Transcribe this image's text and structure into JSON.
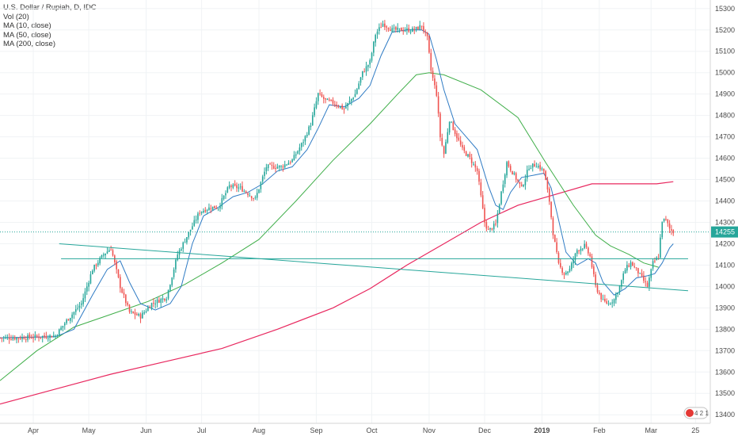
{
  "legend": {
    "symbol": "U.S. Dollar / Rupiah, D, IDC",
    "vol": "Vol (20)",
    "ma10": "MA (10, close)",
    "ma50": "MA (50, close)",
    "ma200": "MA (200, close)"
  },
  "logo_text": "4 2 1",
  "colors": {
    "up": "#26a69a",
    "down": "#ef5350",
    "ma10": "#2f7bc4",
    "ma50": "#3fae49",
    "ma200": "#e8285f",
    "trendline": "#26a69a",
    "price_line": "#26a69a"
  },
  "chart_data": {
    "type": "candlestick",
    "y_ticks": [
      13400,
      13500,
      13600,
      13700,
      13800,
      13900,
      14000,
      14100,
      14200,
      14300,
      14400,
      14500,
      14600,
      14700,
      14800,
      14900,
      15000,
      15100,
      15200,
      15300
    ],
    "ylim": [
      13360,
      15340
    ],
    "x_ticks": [
      {
        "label": "Apr",
        "day": 18
      },
      {
        "label": "May",
        "day": 48
      },
      {
        "label": "Jun",
        "day": 79
      },
      {
        "label": "Jul",
        "day": 109
      },
      {
        "label": "Aug",
        "day": 140
      },
      {
        "label": "Sep",
        "day": 171
      },
      {
        "label": "Oct",
        "day": 201
      },
      {
        "label": "Nov",
        "day": 232
      },
      {
        "label": "Dec",
        "day": 262
      },
      {
        "label": "2019",
        "day": 293
      },
      {
        "label": "Feb",
        "day": 324
      },
      {
        "label": "Mar",
        "day": 352
      },
      {
        "label": "25",
        "day": 376
      }
    ],
    "xlim": [
      0,
      384
    ],
    "last_price": 14255,
    "last_price_label": "14255",
    "key_closes": [
      [
        0,
        13760
      ],
      [
        10,
        13760
      ],
      [
        30,
        13770
      ],
      [
        36,
        13840
      ],
      [
        44,
        13920
      ],
      [
        50,
        14080
      ],
      [
        56,
        14150
      ],
      [
        60,
        14180
      ],
      [
        65,
        14000
      ],
      [
        70,
        13880
      ],
      [
        76,
        13860
      ],
      [
        82,
        13920
      ],
      [
        90,
        13950
      ],
      [
        96,
        14150
      ],
      [
        102,
        14250
      ],
      [
        108,
        14350
      ],
      [
        114,
        14370
      ],
      [
        118,
        14370
      ],
      [
        124,
        14470
      ],
      [
        130,
        14460
      ],
      [
        138,
        14410
      ],
      [
        144,
        14560
      ],
      [
        152,
        14560
      ],
      [
        158,
        14590
      ],
      [
        164,
        14680
      ],
      [
        168,
        14760
      ],
      [
        172,
        14900
      ],
      [
        176,
        14870
      ],
      [
        180,
        14860
      ],
      [
        186,
        14830
      ],
      [
        192,
        14900
      ],
      [
        196,
        15000
      ],
      [
        200,
        15050
      ],
      [
        203,
        15180
      ],
      [
        207,
        15230
      ],
      [
        212,
        15200
      ],
      [
        218,
        15200
      ],
      [
        224,
        15200
      ],
      [
        228,
        15220
      ],
      [
        231,
        15160
      ],
      [
        233,
        15010
      ],
      [
        236,
        14900
      ],
      [
        238,
        14700
      ],
      [
        240,
        14620
      ],
      [
        243,
        14780
      ],
      [
        246,
        14720
      ],
      [
        250,
        14640
      ],
      [
        254,
        14600
      ],
      [
        258,
        14540
      ],
      [
        262,
        14300
      ],
      [
        264,
        14260
      ],
      [
        268,
        14290
      ],
      [
        271,
        14440
      ],
      [
        274,
        14580
      ],
      [
        278,
        14520
      ],
      [
        282,
        14460
      ],
      [
        286,
        14560
      ],
      [
        290,
        14570
      ],
      [
        294,
        14540
      ],
      [
        297,
        14400
      ],
      [
        299,
        14250
      ],
      [
        302,
        14100
      ],
      [
        305,
        14060
      ],
      [
        308,
        14080
      ],
      [
        312,
        14170
      ],
      [
        316,
        14190
      ],
      [
        319,
        14140
      ],
      [
        322,
        14000
      ],
      [
        326,
        13930
      ],
      [
        329,
        13920
      ],
      [
        332,
        13940
      ],
      [
        335,
        14000
      ],
      [
        338,
        14080
      ],
      [
        341,
        14110
      ],
      [
        344,
        14080
      ],
      [
        347,
        14040
      ],
      [
        350,
        14000
      ],
      [
        353,
        14110
      ],
      [
        356,
        14140
      ],
      [
        358,
        14310
      ],
      [
        360,
        14310
      ],
      [
        362,
        14270
      ],
      [
        364,
        14255
      ]
    ],
    "ma10": [
      [
        0,
        13760
      ],
      [
        30,
        13765
      ],
      [
        40,
        13800
      ],
      [
        50,
        13960
      ],
      [
        58,
        14080
      ],
      [
        65,
        14120
      ],
      [
        70,
        14020
      ],
      [
        76,
        13920
      ],
      [
        84,
        13890
      ],
      [
        92,
        13920
      ],
      [
        98,
        14000
      ],
      [
        104,
        14200
      ],
      [
        110,
        14330
      ],
      [
        118,
        14370
      ],
      [
        126,
        14420
      ],
      [
        134,
        14440
      ],
      [
        142,
        14480
      ],
      [
        150,
        14540
      ],
      [
        158,
        14560
      ],
      [
        166,
        14640
      ],
      [
        172,
        14740
      ],
      [
        178,
        14850
      ],
      [
        186,
        14840
      ],
      [
        194,
        14880
      ],
      [
        200,
        14940
      ],
      [
        206,
        15080
      ],
      [
        212,
        15190
      ],
      [
        220,
        15200
      ],
      [
        228,
        15200
      ],
      [
        232,
        15180
      ],
      [
        236,
        15060
      ],
      [
        240,
        14920
      ],
      [
        246,
        14760
      ],
      [
        252,
        14700
      ],
      [
        258,
        14640
      ],
      [
        264,
        14470
      ],
      [
        268,
        14380
      ],
      [
        272,
        14360
      ],
      [
        276,
        14440
      ],
      [
        282,
        14510
      ],
      [
        288,
        14520
      ],
      [
        294,
        14530
      ],
      [
        298,
        14460
      ],
      [
        302,
        14310
      ],
      [
        306,
        14160
      ],
      [
        312,
        14100
      ],
      [
        318,
        14130
      ],
      [
        322,
        14110
      ],
      [
        326,
        14020
      ],
      [
        332,
        13960
      ],
      [
        338,
        13990
      ],
      [
        344,
        14040
      ],
      [
        350,
        14050
      ],
      [
        354,
        14060
      ],
      [
        358,
        14110
      ],
      [
        362,
        14180
      ],
      [
        364,
        14200
      ]
    ],
    "ma50": [
      [
        0,
        13560
      ],
      [
        20,
        13700
      ],
      [
        40,
        13810
      ],
      [
        60,
        13870
      ],
      [
        80,
        13930
      ],
      [
        100,
        14010
      ],
      [
        120,
        14110
      ],
      [
        140,
        14220
      ],
      [
        160,
        14400
      ],
      [
        180,
        14590
      ],
      [
        200,
        14760
      ],
      [
        215,
        14900
      ],
      [
        225,
        14990
      ],
      [
        232,
        15000
      ],
      [
        240,
        14990
      ],
      [
        260,
        14920
      ],
      [
        280,
        14790
      ],
      [
        295,
        14580
      ],
      [
        310,
        14380
      ],
      [
        322,
        14240
      ],
      [
        330,
        14190
      ],
      [
        340,
        14150
      ],
      [
        348,
        14110
      ],
      [
        356,
        14090
      ]
    ],
    "ma200": [
      [
        0,
        13450
      ],
      [
        30,
        13520
      ],
      [
        60,
        13590
      ],
      [
        90,
        13650
      ],
      [
        120,
        13710
      ],
      [
        150,
        13800
      ],
      [
        180,
        13900
      ],
      [
        200,
        13990
      ],
      [
        220,
        14100
      ],
      [
        240,
        14200
      ],
      [
        260,
        14300
      ],
      [
        280,
        14380
      ],
      [
        300,
        14430
      ],
      [
        320,
        14480
      ],
      [
        340,
        14480
      ],
      [
        355,
        14480
      ],
      [
        364,
        14490
      ]
    ],
    "trendlines": [
      {
        "from": [
          32,
          14200
        ],
        "to": [
          372,
          13980
        ]
      },
      {
        "from": [
          33,
          14130
        ],
        "to": [
          372,
          14130
        ]
      }
    ]
  }
}
